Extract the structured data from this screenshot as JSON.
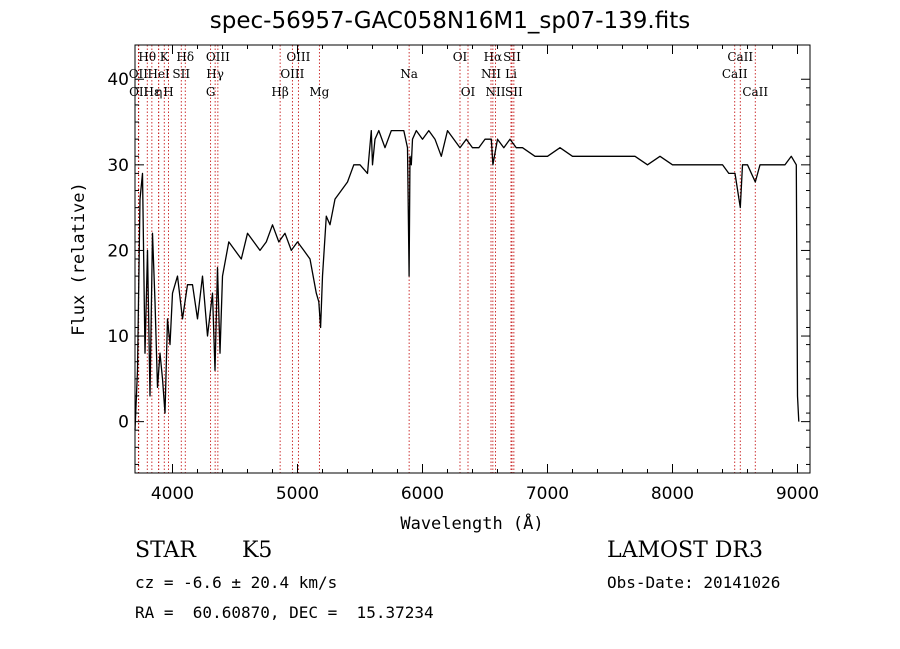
{
  "chart_data": {
    "type": "line",
    "title": "spec-56957-GAC058N16M1_sp07-139.fits",
    "xlabel": "Wavelength (Å)",
    "ylabel": "Flux (relative)",
    "xlim": [
      3700,
      9100
    ],
    "ylim": [
      -6,
      44
    ],
    "xticks": [
      4000,
      5000,
      6000,
      7000,
      8000,
      9000
    ],
    "yticks": [
      0,
      10,
      20,
      30,
      40
    ],
    "series": [
      {
        "name": "spectrum",
        "x": [
          3700,
          3720,
          3740,
          3760,
          3780,
          3800,
          3820,
          3840,
          3860,
          3880,
          3900,
          3920,
          3940,
          3960,
          3980,
          4000,
          4040,
          4080,
          4120,
          4160,
          4200,
          4240,
          4280,
          4320,
          4340,
          4360,
          4380,
          4400,
          4450,
          4500,
          4550,
          4600,
          4650,
          4700,
          4750,
          4800,
          4850,
          4900,
          4950,
          5000,
          5050,
          5100,
          5150,
          5170,
          5185,
          5200,
          5230,
          5260,
          5300,
          5350,
          5400,
          5450,
          5500,
          5560,
          5590,
          5600,
          5620,
          5650,
          5700,
          5750,
          5800,
          5850,
          5880,
          5893,
          5900,
          5910,
          5920,
          5950,
          6000,
          6050,
          6100,
          6150,
          6200,
          6250,
          6300,
          6350,
          6400,
          6450,
          6500,
          6550,
          6563,
          6600,
          6650,
          6700,
          6750,
          6800,
          6900,
          7000,
          7100,
          7200,
          7300,
          7400,
          7500,
          7600,
          7700,
          7800,
          7900,
          8000,
          8100,
          8200,
          8300,
          8400,
          8450,
          8500,
          8542,
          8560,
          8600,
          8662,
          8700,
          8800,
          8900,
          8950,
          8990,
          9000,
          9010
        ],
        "values": [
          -1,
          6,
          26,
          29,
          8,
          20,
          3,
          22,
          14,
          4,
          8,
          5,
          1,
          12,
          9,
          15,
          17,
          12,
          16,
          16,
          12,
          17,
          10,
          15,
          6,
          18,
          8,
          17,
          21,
          20,
          19,
          22,
          21,
          20,
          21,
          23,
          21,
          22,
          20,
          21,
          20,
          19,
          15,
          14,
          11,
          17,
          24,
          23,
          26,
          27,
          28,
          30,
          30,
          29,
          34,
          30,
          33,
          34,
          32,
          34,
          34,
          34,
          32,
          17,
          31,
          30,
          33,
          34,
          33,
          34,
          33,
          31,
          34,
          33,
          32,
          33,
          32,
          32,
          33,
          33,
          30,
          33,
          32,
          33,
          32,
          32,
          31,
          31,
          32,
          31,
          31,
          31,
          31,
          31,
          31,
          30,
          31,
          30,
          30,
          30,
          30,
          30,
          29,
          29,
          25,
          30,
          30,
          28,
          30,
          30,
          30,
          31,
          30,
          3,
          0
        ]
      }
    ],
    "lines": [
      {
        "label": "Hθ",
        "x": 3798,
        "row": 1
      },
      {
        "label": "OII",
        "x": 3727,
        "row": 2
      },
      {
        "label": "OII",
        "x": 3730,
        "row": 3
      },
      {
        "label": "Hε",
        "x": 3835,
        "row": 3
      },
      {
        "label": "HeI",
        "x": 3889,
        "row": 2
      },
      {
        "label": "K",
        "x": 3934,
        "row": 1
      },
      {
        "label": "η",
        "x": 3890,
        "row": 3
      },
      {
        "label": "H",
        "x": 3968,
        "row": 3
      },
      {
        "label": "SII",
        "x": 4070,
        "row": 2
      },
      {
        "label": "Hδ",
        "x": 4102,
        "row": 1
      },
      {
        "label": "OIII",
        "x": 4363,
        "row": 1
      },
      {
        "label": "Hγ",
        "x": 4341,
        "row": 2
      },
      {
        "label": "G",
        "x": 4305,
        "row": 3
      },
      {
        "label": "Hβ",
        "x": 4861,
        "row": 3
      },
      {
        "label": "OIII",
        "x": 5007,
        "row": 1
      },
      {
        "label": "OIII",
        "x": 4959,
        "row": 2
      },
      {
        "label": "Mg",
        "x": 5175,
        "row": 3
      },
      {
        "label": "Na",
        "x": 5893,
        "row": 2
      },
      {
        "label": "OI",
        "x": 6300,
        "row": 1
      },
      {
        "label": "OI",
        "x": 6364,
        "row": 3
      },
      {
        "label": "Hα",
        "x": 6563,
        "row": 1
      },
      {
        "label": "SII",
        "x": 6716,
        "row": 1
      },
      {
        "label": "NII",
        "x": 6548,
        "row": 2
      },
      {
        "label": "Li",
        "x": 6708,
        "row": 2
      },
      {
        "label": "NII",
        "x": 6584,
        "row": 3
      },
      {
        "label": "SII",
        "x": 6731,
        "row": 3
      },
      {
        "label": "CaII",
        "x": 8542,
        "row": 1
      },
      {
        "label": "CaII",
        "x": 8498,
        "row": 2
      },
      {
        "label": "CaII",
        "x": 8662,
        "row": 3
      }
    ]
  },
  "info": {
    "class": "STAR",
    "subclass": "K5",
    "survey": "LAMOST DR3",
    "cz": "cz = -6.6 ± 20.4 km/s",
    "obs_date": "Obs-Date: 20141026",
    "radec": "RA =  60.60870, DEC =  15.37234"
  }
}
